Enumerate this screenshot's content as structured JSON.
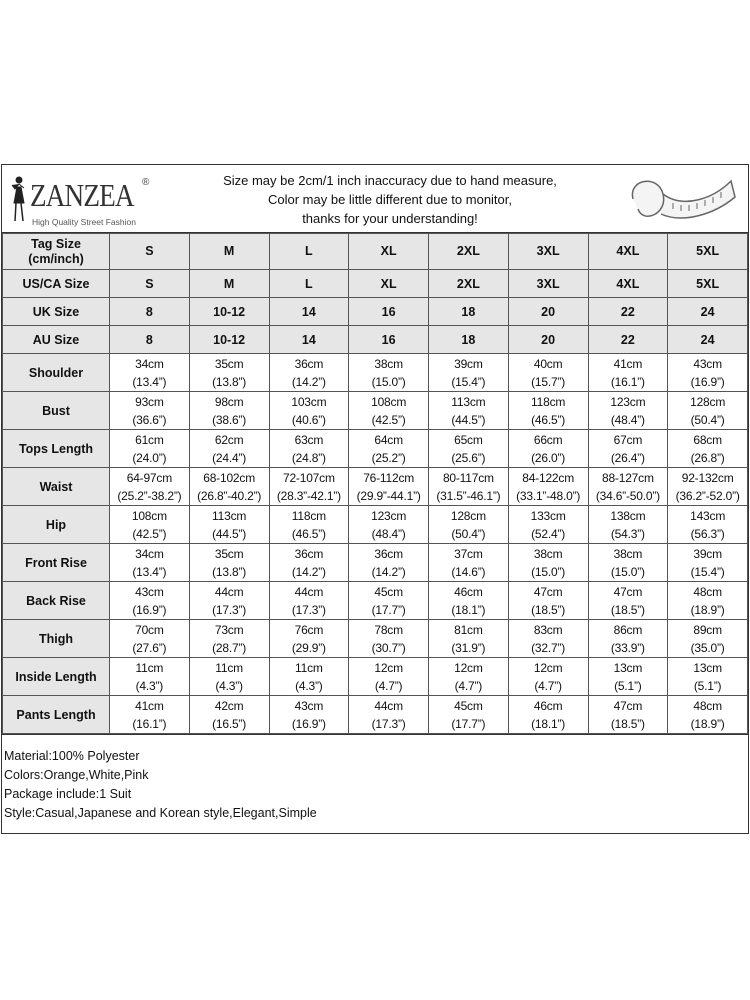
{
  "header": {
    "brand": "ZANZEA",
    "brand_mark": "®",
    "tagline": "High Quality Street Fashion",
    "notes": [
      "Size may be 2cm/1 inch inaccuracy due to hand measure,",
      "Color may be little different due to monitor,",
      "thanks for your understanding!"
    ],
    "icon": "measuring-tape-icon"
  },
  "size_rows": [
    {
      "label": "Tag Size (cm/inch)",
      "values": [
        "S",
        "M",
        "L",
        "XL",
        "2XL",
        "3XL",
        "4XL",
        "5XL"
      ]
    },
    {
      "label": "US/CA Size",
      "values": [
        "S",
        "M",
        "L",
        "XL",
        "2XL",
        "3XL",
        "4XL",
        "5XL"
      ]
    },
    {
      "label": "UK Size",
      "values": [
        "8",
        "10-12",
        "14",
        "16",
        "18",
        "20",
        "22",
        "24"
      ]
    },
    {
      "label": "AU Size",
      "values": [
        "8",
        "10-12",
        "14",
        "16",
        "18",
        "20",
        "22",
        "24"
      ]
    }
  ],
  "measure_rows": [
    {
      "label": "Shoulder",
      "cm": [
        "34cm",
        "35cm",
        "36cm",
        "38cm",
        "39cm",
        "40cm",
        "41cm",
        "43cm"
      ],
      "inch": [
        "(13.4”)",
        "(13.8”)",
        "(14.2”)",
        "(15.0”)",
        "(15.4”)",
        "(15.7”)",
        "(16.1”)",
        "(16.9”)"
      ]
    },
    {
      "label": "Bust",
      "cm": [
        "93cm",
        "98cm",
        "103cm",
        "108cm",
        "113cm",
        "118cm",
        "123cm",
        "128cm"
      ],
      "inch": [
        "(36.6”)",
        "(38.6”)",
        "(40.6”)",
        "(42.5”)",
        "(44.5”)",
        "(46.5”)",
        "(48.4”)",
        "(50.4”)"
      ]
    },
    {
      "label": "Tops Length",
      "cm": [
        "61cm",
        "62cm",
        "63cm",
        "64cm",
        "65cm",
        "66cm",
        "67cm",
        "68cm"
      ],
      "inch": [
        "(24.0”)",
        "(24.4”)",
        "(24.8”)",
        "(25.2”)",
        "(25.6”)",
        "(26.0”)",
        "(26.4”)",
        "(26.8”)"
      ]
    },
    {
      "label": "Waist",
      "cm": [
        "64-97cm",
        "68-102cm",
        "72-107cm",
        "76-112cm",
        "80-117cm",
        "84-122cm",
        "88-127cm",
        "92-132cm"
      ],
      "inch": [
        "(25.2”-38.2”)",
        "(26.8”-40.2”)",
        "(28.3”-42.1”)",
        "(29.9”-44.1”)",
        "(31.5”-46.1”)",
        "(33.1”-48.0”)",
        "(34.6”-50.0”)",
        "(36.2”-52.0”)"
      ]
    },
    {
      "label": "Hip",
      "cm": [
        "108cm",
        "113cm",
        "118cm",
        "123cm",
        "128cm",
        "133cm",
        "138cm",
        "143cm"
      ],
      "inch": [
        "(42.5”)",
        "(44.5”)",
        "(46.5”)",
        "(48.4”)",
        "(50.4”)",
        "(52.4”)",
        "(54.3”)",
        "(56.3”)"
      ]
    },
    {
      "label": "Front Rise",
      "cm": [
        "34cm",
        "35cm",
        "36cm",
        "36cm",
        "37cm",
        "38cm",
        "38cm",
        "39cm"
      ],
      "inch": [
        "(13.4”)",
        "(13.8”)",
        "(14.2”)",
        "(14.2”)",
        "(14.6”)",
        "(15.0”)",
        "(15.0”)",
        "(15.4”)"
      ]
    },
    {
      "label": "Back Rise",
      "cm": [
        "43cm",
        "44cm",
        "44cm",
        "45cm",
        "46cm",
        "47cm",
        "47cm",
        "48cm"
      ],
      "inch": [
        "(16.9”)",
        "(17.3”)",
        "(17.3”)",
        "(17.7”)",
        "(18.1”)",
        "(18.5”)",
        "(18.5”)",
        "(18.9”)"
      ]
    },
    {
      "label": "Thigh",
      "cm": [
        "70cm",
        "73cm",
        "76cm",
        "78cm",
        "81cm",
        "83cm",
        "86cm",
        "89cm"
      ],
      "inch": [
        "(27.6”)",
        "(28.7”)",
        "(29.9”)",
        "(30.7”)",
        "(31.9”)",
        "(32.7”)",
        "(33.9”)",
        "(35.0”)"
      ]
    },
    {
      "label": "Inside Length",
      "cm": [
        "11cm",
        "11cm",
        "11cm",
        "12cm",
        "12cm",
        "12cm",
        "13cm",
        "13cm"
      ],
      "inch": [
        "(4.3”)",
        "(4.3”)",
        "(4.3”)",
        "(4.7”)",
        "(4.7”)",
        "(4.7”)",
        "(5.1”)",
        "(5.1”)"
      ]
    },
    {
      "label": "Pants Length",
      "cm": [
        "41cm",
        "42cm",
        "43cm",
        "44cm",
        "45cm",
        "46cm",
        "47cm",
        "48cm"
      ],
      "inch": [
        "(16.1”)",
        "(16.5”)",
        "(16.9”)",
        "(17.3”)",
        "(17.7”)",
        "(18.1”)",
        "(18.5”)",
        "(18.9”)"
      ]
    }
  ],
  "footer": [
    "Material:100% Polyester",
    "Colors:Orange,White,Pink",
    "Package include:1 Suit",
    "Style:Casual,Japanese and Korean style,Elegant,Simple"
  ]
}
